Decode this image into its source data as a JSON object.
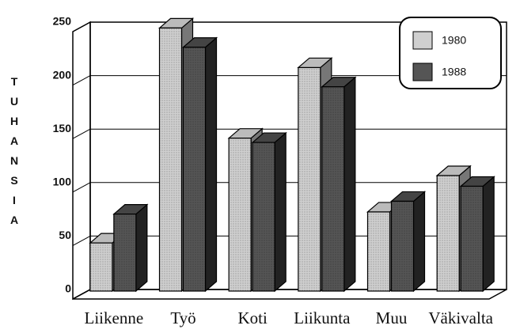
{
  "chart_data": {
    "type": "bar",
    "y_label": "TUHANSIA",
    "categories": [
      "Liikenne",
      "Työ",
      "Koti",
      "Liikunta",
      "Muu",
      "Väkivalta"
    ],
    "series": [
      {
        "name": "1980",
        "color": "#cfcfcf",
        "values": [
          45,
          246,
          143,
          209,
          74,
          108
        ]
      },
      {
        "name": "1988",
        "color": "#555555",
        "values": [
          72,
          228,
          139,
          191,
          84,
          98
        ]
      }
    ],
    "ylim": [
      0,
      250
    ],
    "yticks": [
      0,
      50,
      100,
      150,
      200,
      250
    ],
    "grid": true
  }
}
